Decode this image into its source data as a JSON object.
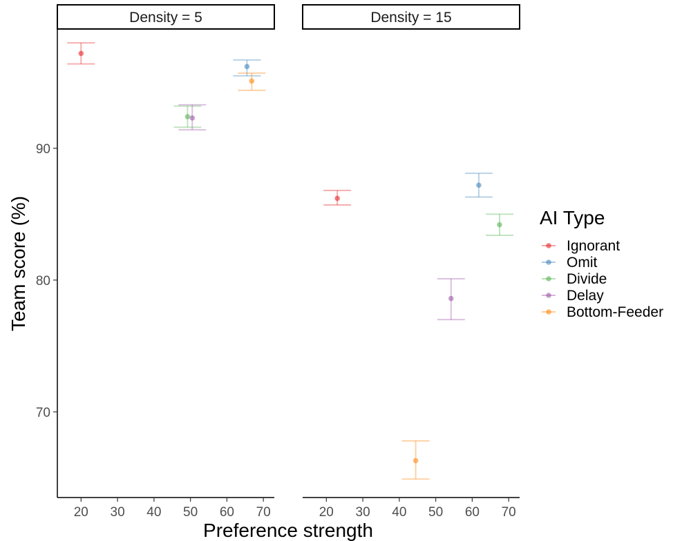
{
  "chart_data": {
    "type": "scatter",
    "xlabel": "Preference strength",
    "ylabel": "Team score (%)",
    "xlim": [
      13.5,
      73
    ],
    "ylim": [
      63.5,
      99
    ],
    "x_ticks": [
      20,
      30,
      40,
      50,
      60,
      70
    ],
    "y_ticks": [
      70,
      80,
      90
    ],
    "grid": false,
    "legend": {
      "title": "AI Type",
      "placement": "right",
      "entries": [
        {
          "name": "Ignorant",
          "color": "#e41a1c"
        },
        {
          "name": "Omit",
          "color": "#377eb8"
        },
        {
          "name": "Divide",
          "color": "#4daf4a"
        },
        {
          "name": "Delay",
          "color": "#984ea3"
        },
        {
          "name": "Bottom-Feeder",
          "color": "#ff7f00"
        }
      ]
    },
    "facets": [
      {
        "label": "Density = 5",
        "points": [
          {
            "series": "Ignorant",
            "x": 20,
            "y": 97.2,
            "ymin": 96.4,
            "ymax": 98.0
          },
          {
            "series": "Omit",
            "x": 65.5,
            "y": 96.2,
            "ymin": 95.5,
            "ymax": 96.7
          },
          {
            "series": "Divide",
            "x": 49.2,
            "y": 92.4,
            "ymin": 91.6,
            "ymax": 93.2
          },
          {
            "series": "Delay",
            "x": 50.5,
            "y": 92.3,
            "ymin": 91.4,
            "ymax": 93.3
          },
          {
            "series": "Bottom-Feeder",
            "x": 66.8,
            "y": 95.1,
            "ymin": 94.4,
            "ymax": 95.7
          }
        ]
      },
      {
        "label": "Density = 15",
        "points": [
          {
            "series": "Ignorant",
            "x": 23,
            "y": 86.2,
            "ymin": 85.7,
            "ymax": 86.8
          },
          {
            "series": "Omit",
            "x": 61.8,
            "y": 87.2,
            "ymin": 86.3,
            "ymax": 88.1
          },
          {
            "series": "Divide",
            "x": 67.5,
            "y": 84.2,
            "ymin": 83.4,
            "ymax": 85.0
          },
          {
            "series": "Delay",
            "x": 54.2,
            "y": 78.6,
            "ymin": 77.0,
            "ymax": 80.1
          },
          {
            "series": "Bottom-Feeder",
            "x": 44.5,
            "y": 66.3,
            "ymin": 64.9,
            "ymax": 67.8
          }
        ]
      }
    ]
  }
}
